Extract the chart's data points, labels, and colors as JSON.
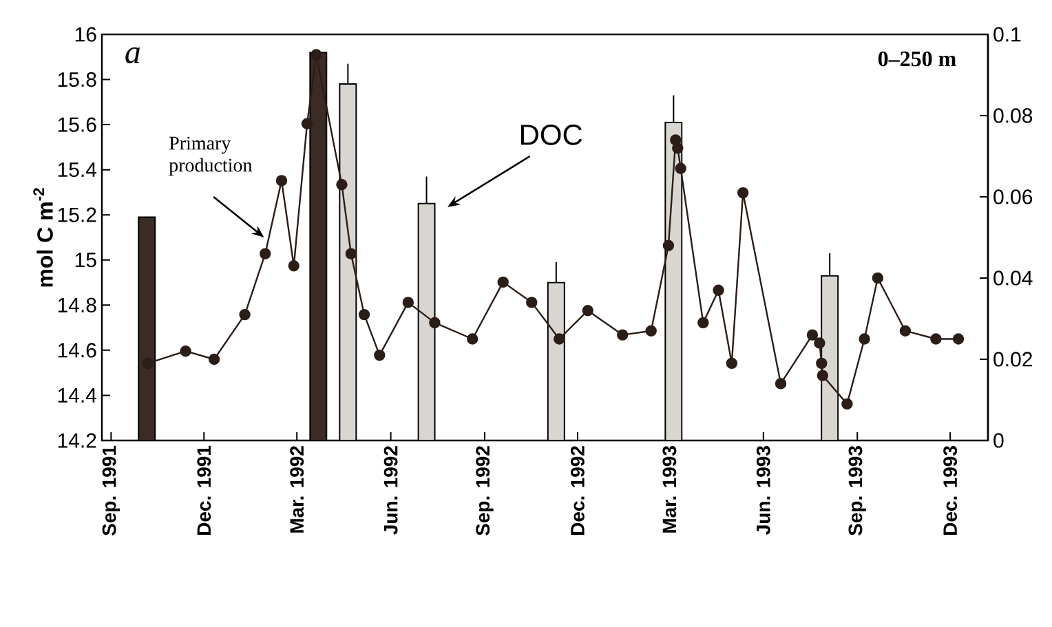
{
  "chart_data": {
    "type": "bar",
    "ylabel": "mol C m$^{-2}$",
    "xlim": [
      "1991-08-23",
      "1994-01-07"
    ],
    "xticks": [
      {
        "value": "1991-09-01",
        "label": "Sep. 1991"
      },
      {
        "value": "1991-12-01",
        "label": "Dec. 1991"
      },
      {
        "value": "1992-03-01",
        "label": "Mar. 1992"
      },
      {
        "value": "1992-06-01",
        "label": "Jun. 1992"
      },
      {
        "value": "1992-09-01",
        "label": "Sep. 1992"
      },
      {
        "value": "1992-12-01",
        "label": "Dec. 1992"
      },
      {
        "value": "1993-03-01",
        "label": "Mar. 1993"
      },
      {
        "value": "1993-06-01",
        "label": "Jun. 1993"
      },
      {
        "value": "1993-09-01",
        "label": "Sep. 1993"
      },
      {
        "value": "1993-12-01",
        "label": "Dec. 1993"
      }
    ],
    "ylim": [
      14.2,
      16
    ],
    "yticks": [
      14.2,
      14.4,
      14.6,
      14.8,
      15,
      15.2,
      15.4,
      15.6,
      15.8,
      16
    ],
    "y2lim": [
      0,
      0.1
    ],
    "y2ticks": [
      0,
      0.02,
      0.04,
      0.06,
      0.08,
      0.1
    ],
    "marker": "circle",
    "series": [
      {
        "x": [
          "1991-10-06",
          "1992-03-22",
          "1992-04-20",
          "1992-07-06",
          "1992-11-10",
          "1993-03-05",
          "1993-08-05"
        ],
        "values": [
          15.19,
          15.92,
          15.78,
          15.25,
          14.9,
          15.61,
          14.93
        ],
        "errors": [
          null,
          null,
          [
            15.78,
            15.87
          ],
          [
            15.25,
            15.37
          ],
          [
            14.9,
            14.99
          ],
          [
            15.61,
            15.73
          ],
          [
            14.93,
            15.03
          ]
        ],
        "colors": [
          "#3b2b25",
          "#3b2b25",
          "#d9d6d2",
          "#d9d6d2",
          "#d9d6d2",
          "#d9d6d2",
          "#d9d6d2"
        ]
      },
      {
        "type": "line",
        "axis": "y2",
        "color": "#2b1d17",
        "x": [
          "1991-10-07",
          "1991-11-13",
          "1991-12-11",
          "1992-01-10",
          "1992-01-30",
          "1992-02-15",
          "1992-02-27",
          "1992-03-11",
          "1992-03-20",
          "1992-04-14",
          "1992-04-23",
          "1992-05-06",
          "1992-05-21",
          "1992-06-18",
          "1992-07-14",
          "1992-08-20",
          "1992-09-19",
          "1992-10-17",
          "1992-11-13",
          "1992-12-11",
          "1993-01-14",
          "1993-02-11",
          "1993-02-28",
          "1993-03-07",
          "1993-03-09",
          "1993-03-12",
          "1993-04-03",
          "1993-04-18",
          "1993-05-01",
          "1993-05-12",
          "1993-06-18",
          "1993-07-19",
          "1993-07-26",
          "1993-07-28",
          "1993-07-29",
          "1993-08-22",
          "1993-09-08",
          "1993-09-21",
          "1993-10-18",
          "1993-11-17",
          "1993-12-09"
        ],
        "values": [
          0.019,
          0.022,
          0.02,
          0.031,
          0.046,
          0.064,
          0.043,
          0.078,
          0.095,
          0.063,
          0.046,
          0.031,
          0.021,
          0.034,
          0.029,
          0.025,
          0.039,
          0.034,
          0.025,
          0.032,
          0.026,
          0.027,
          0.048,
          0.074,
          0.072,
          0.067,
          0.029,
          0.037,
          0.019,
          0.061,
          0.014,
          0.026,
          0.024,
          0.019,
          0.016,
          0.009,
          0.025,
          0.04,
          0.027,
          0.025,
          0.025
        ]
      }
    ],
    "annotations": [
      "a",
      "0–250 m",
      "Primary production",
      "DOC"
    ]
  }
}
